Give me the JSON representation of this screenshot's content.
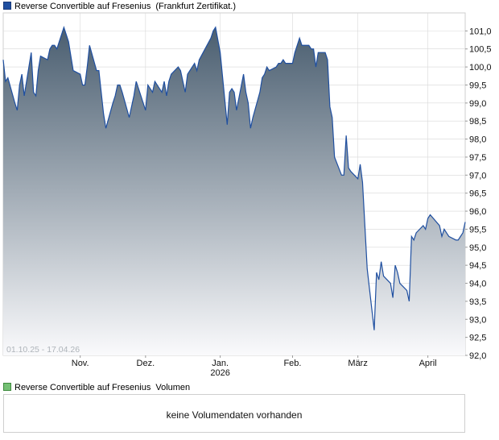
{
  "legend": {
    "price_name": "Reverse Convertible auf Fresenius",
    "price_exchange": "(Frankfurt Zertifikat.)",
    "volume_name": "Reverse Convertible auf Fresenius",
    "volume_label": "Volumen"
  },
  "volume": {
    "message": "keine Volumendaten vorhanden"
  },
  "colors": {
    "line": "#1f4fa0",
    "area_top": "#4a5e70",
    "area_bottom": "#fafafc",
    "grid": "#d8d8d8"
  },
  "chart_data": {
    "type": "area",
    "title": "",
    "date_range_label": "01.10.25 - 17.04.26",
    "ylim": [
      92.0,
      101.5
    ],
    "y_ticks": [
      "92,0",
      "92,5",
      "93,0",
      "93,5",
      "94,0",
      "94,5",
      "95,0",
      "95,5",
      "96,0",
      "96,5",
      "97,0",
      "97,5",
      "98,0",
      "98,5",
      "99,0",
      "99,5",
      "100,0",
      "100,5",
      "101,0"
    ],
    "x_ticks": [
      {
        "label": "Nov.",
        "sub": "",
        "date": "2025-11-03"
      },
      {
        "label": "Dez.",
        "sub": "",
        "date": "2025-12-01"
      },
      {
        "label": "Jan.",
        "sub": "2026",
        "date": "2026-01-02"
      },
      {
        "label": "Feb.",
        "sub": "",
        "date": "2026-02-02"
      },
      {
        "label": "März",
        "sub": "",
        "date": "2026-03-02"
      },
      {
        "label": "April",
        "sub": "",
        "date": "2026-04-01"
      }
    ],
    "x_start": "2025-10-01",
    "x_end": "2026-04-17",
    "series": [
      {
        "name": "Reverse Convertible auf Fresenius",
        "points": [
          [
            "2025-10-01",
            100.2
          ],
          [
            "2025-10-02",
            99.6
          ],
          [
            "2025-10-03",
            99.7
          ],
          [
            "2025-10-06",
            99.0
          ],
          [
            "2025-10-07",
            98.8
          ],
          [
            "2025-10-08",
            99.5
          ],
          [
            "2025-10-09",
            99.8
          ],
          [
            "2025-10-10",
            99.2
          ],
          [
            "2025-10-13",
            100.4
          ],
          [
            "2025-10-14",
            99.3
          ],
          [
            "2025-10-15",
            99.2
          ],
          [
            "2025-10-16",
            99.9
          ],
          [
            "2025-10-17",
            100.3
          ],
          [
            "2025-10-20",
            100.2
          ],
          [
            "2025-10-21",
            100.5
          ],
          [
            "2025-10-22",
            100.6
          ],
          [
            "2025-10-23",
            100.6
          ],
          [
            "2025-10-24",
            100.5
          ],
          [
            "2025-10-27",
            101.1
          ],
          [
            "2025-10-28",
            100.9
          ],
          [
            "2025-10-29",
            100.7
          ],
          [
            "2025-10-30",
            100.3
          ],
          [
            "2025-10-31",
            99.9
          ],
          [
            "2025-11-03",
            99.8
          ],
          [
            "2025-11-04",
            99.5
          ],
          [
            "2025-11-05",
            99.5
          ],
          [
            "2025-11-06",
            100.0
          ],
          [
            "2025-11-07",
            100.6
          ],
          [
            "2025-11-10",
            99.9
          ],
          [
            "2025-11-11",
            99.9
          ],
          [
            "2025-11-12",
            99.3
          ],
          [
            "2025-11-13",
            98.7
          ],
          [
            "2025-11-14",
            98.3
          ],
          [
            "2025-11-17",
            99.0
          ],
          [
            "2025-11-18",
            99.2
          ],
          [
            "2025-11-19",
            99.5
          ],
          [
            "2025-11-20",
            99.5
          ],
          [
            "2025-11-21",
            99.3
          ],
          [
            "2025-11-24",
            98.6
          ],
          [
            "2025-11-25",
            98.9
          ],
          [
            "2025-11-26",
            99.2
          ],
          [
            "2025-11-27",
            99.6
          ],
          [
            "2025-11-28",
            99.4
          ],
          [
            "2025-12-01",
            98.8
          ],
          [
            "2025-12-02",
            99.5
          ],
          [
            "2025-12-03",
            99.4
          ],
          [
            "2025-12-04",
            99.3
          ],
          [
            "2025-12-05",
            99.6
          ],
          [
            "2025-12-08",
            99.3
          ],
          [
            "2025-12-09",
            99.6
          ],
          [
            "2025-12-10",
            99.2
          ],
          [
            "2025-12-11",
            99.6
          ],
          [
            "2025-12-12",
            99.8
          ],
          [
            "2025-12-15",
            100.0
          ],
          [
            "2025-12-16",
            99.9
          ],
          [
            "2025-12-17",
            99.6
          ],
          [
            "2025-12-18",
            99.3
          ],
          [
            "2025-12-19",
            99.8
          ],
          [
            "2025-12-22",
            100.1
          ],
          [
            "2025-12-23",
            99.9
          ],
          [
            "2025-12-24",
            100.2
          ],
          [
            "2025-12-29",
            100.8
          ],
          [
            "2025-12-30",
            101.0
          ],
          [
            "2025-12-31",
            101.1
          ],
          [
            "2026-01-02",
            100.4
          ],
          [
            "2026-01-05",
            98.4
          ],
          [
            "2026-01-06",
            99.3
          ],
          [
            "2026-01-07",
            99.4
          ],
          [
            "2026-01-08",
            99.3
          ],
          [
            "2026-01-09",
            98.8
          ],
          [
            "2026-01-12",
            99.8
          ],
          [
            "2026-01-13",
            99.3
          ],
          [
            "2026-01-14",
            99.0
          ],
          [
            "2026-01-15",
            98.3
          ],
          [
            "2026-01-16",
            98.6
          ],
          [
            "2026-01-19",
            99.3
          ],
          [
            "2026-01-20",
            99.7
          ],
          [
            "2026-01-21",
            99.8
          ],
          [
            "2026-01-22",
            100.0
          ],
          [
            "2026-01-23",
            99.9
          ],
          [
            "2026-01-26",
            100.0
          ],
          [
            "2026-01-27",
            100.1
          ],
          [
            "2026-01-28",
            100.1
          ],
          [
            "2026-01-29",
            100.2
          ],
          [
            "2026-01-30",
            100.1
          ],
          [
            "2026-02-02",
            100.1
          ],
          [
            "2026-02-03",
            100.4
          ],
          [
            "2026-02-04",
            100.6
          ],
          [
            "2026-02-05",
            100.8
          ],
          [
            "2026-02-06",
            100.6
          ],
          [
            "2026-02-09",
            100.6
          ],
          [
            "2026-02-10",
            100.5
          ],
          [
            "2026-02-11",
            100.5
          ],
          [
            "2026-02-12",
            100.0
          ],
          [
            "2026-02-13",
            100.4
          ],
          [
            "2026-02-16",
            100.4
          ],
          [
            "2026-02-17",
            100.2
          ],
          [
            "2026-02-18",
            98.9
          ],
          [
            "2026-02-19",
            98.6
          ],
          [
            "2026-02-20",
            97.5
          ],
          [
            "2026-02-23",
            97.0
          ],
          [
            "2026-02-24",
            97.0
          ],
          [
            "2026-02-25",
            98.1
          ],
          [
            "2026-02-26",
            97.2
          ],
          [
            "2026-02-27",
            97.1
          ],
          [
            "2026-03-02",
            96.9
          ],
          [
            "2026-03-03",
            97.3
          ],
          [
            "2026-03-04",
            96.8
          ],
          [
            "2026-03-05",
            95.6
          ],
          [
            "2026-03-06",
            94.4
          ],
          [
            "2026-03-09",
            92.7
          ],
          [
            "2026-03-10",
            94.3
          ],
          [
            "2026-03-11",
            94.1
          ],
          [
            "2026-03-12",
            94.6
          ],
          [
            "2026-03-13",
            94.2
          ],
          [
            "2026-03-16",
            94.0
          ],
          [
            "2026-03-17",
            93.6
          ],
          [
            "2026-03-18",
            94.5
          ],
          [
            "2026-03-19",
            94.3
          ],
          [
            "2026-03-20",
            94.0
          ],
          [
            "2026-03-23",
            93.8
          ],
          [
            "2026-03-24",
            93.5
          ],
          [
            "2026-03-25",
            95.3
          ],
          [
            "2026-03-26",
            95.2
          ],
          [
            "2026-03-27",
            95.4
          ],
          [
            "2026-03-30",
            95.6
          ],
          [
            "2026-03-31",
            95.5
          ],
          [
            "2026-04-01",
            95.8
          ],
          [
            "2026-04-02",
            95.9
          ],
          [
            "2026-04-06",
            95.6
          ],
          [
            "2026-04-07",
            95.3
          ],
          [
            "2026-04-08",
            95.5
          ],
          [
            "2026-04-09",
            95.4
          ],
          [
            "2026-04-10",
            95.3
          ],
          [
            "2026-04-13",
            95.2
          ],
          [
            "2026-04-14",
            95.2
          ],
          [
            "2026-04-15",
            95.3
          ],
          [
            "2026-04-16",
            95.4
          ],
          [
            "2026-04-17",
            95.7
          ]
        ]
      }
    ],
    "grid": true,
    "legend_position": "top-left"
  }
}
